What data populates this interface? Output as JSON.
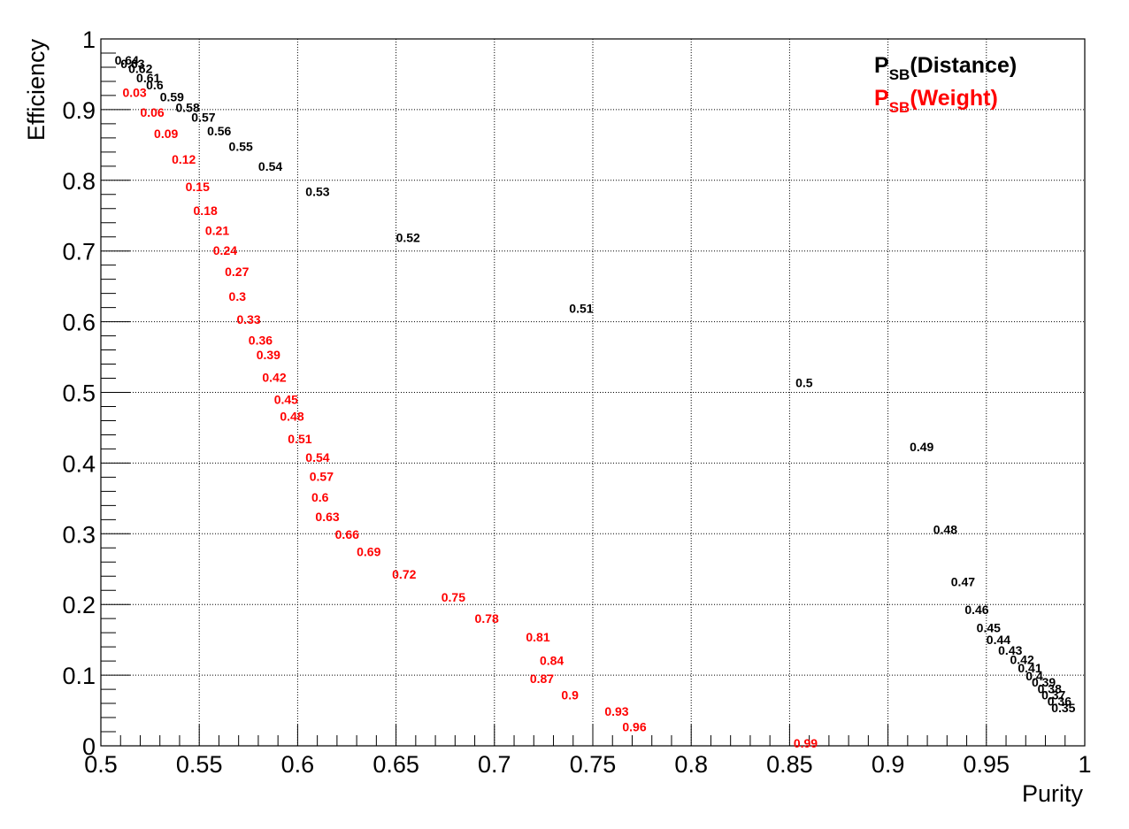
{
  "chart_data": {
    "type": "scatter",
    "title": "",
    "xlabel": "Purity",
    "ylabel": "Efficiency",
    "xlim": [
      0.5,
      1.0
    ],
    "ylim": [
      0.0,
      1.0
    ],
    "grid": true,
    "legend_position": "top-right",
    "x_ticks": [
      "0.5",
      "0.55",
      "0.6",
      "0.65",
      "0.7",
      "0.75",
      "0.8",
      "0.85",
      "0.9",
      "0.95",
      "1"
    ],
    "y_ticks": [
      "0",
      "0.1",
      "0.2",
      "0.3",
      "0.4",
      "0.5",
      "0.6",
      "0.7",
      "0.8",
      "0.9",
      "1"
    ],
    "series": [
      {
        "name": "P_SB(Distance)",
        "legend_main": "P",
        "legend_sub": "SB",
        "legend_rest": "(Distance)",
        "color": "#000000",
        "points": [
          {
            "x": 0.507,
            "y": 0.97,
            "label": "0.64"
          },
          {
            "x": 0.51,
            "y": 0.965,
            "label": "0.63"
          },
          {
            "x": 0.514,
            "y": 0.958,
            "label": "0.62"
          },
          {
            "x": 0.518,
            "y": 0.945,
            "label": "0.61"
          },
          {
            "x": 0.523,
            "y": 0.935,
            "label": "0.6"
          },
          {
            "x": 0.53,
            "y": 0.918,
            "label": "0.59"
          },
          {
            "x": 0.538,
            "y": 0.903,
            "label": "0.58"
          },
          {
            "x": 0.546,
            "y": 0.889,
            "label": "0.57"
          },
          {
            "x": 0.554,
            "y": 0.87,
            "label": "0.56"
          },
          {
            "x": 0.565,
            "y": 0.848,
            "label": "0.55"
          },
          {
            "x": 0.58,
            "y": 0.82,
            "label": "0.54"
          },
          {
            "x": 0.604,
            "y": 0.784,
            "label": "0.53"
          },
          {
            "x": 0.65,
            "y": 0.719,
            "label": "0.52"
          },
          {
            "x": 0.738,
            "y": 0.619,
            "label": "0.51"
          },
          {
            "x": 0.853,
            "y": 0.514,
            "label": "0.5"
          },
          {
            "x": 0.911,
            "y": 0.423,
            "label": "0.49"
          },
          {
            "x": 0.923,
            "y": 0.306,
            "label": "0.48"
          },
          {
            "x": 0.932,
            "y": 0.232,
            "label": "0.47"
          },
          {
            "x": 0.939,
            "y": 0.193,
            "label": "0.46"
          },
          {
            "x": 0.945,
            "y": 0.167,
            "label": "0.45"
          },
          {
            "x": 0.95,
            "y": 0.15,
            "label": "0.44"
          },
          {
            "x": 0.956,
            "y": 0.135,
            "label": "0.43"
          },
          {
            "x": 0.962,
            "y": 0.122,
            "label": "0.42"
          },
          {
            "x": 0.966,
            "y": 0.11,
            "label": "0.41"
          },
          {
            "x": 0.97,
            "y": 0.099,
            "label": "0.4"
          },
          {
            "x": 0.973,
            "y": 0.09,
            "label": "0.39"
          },
          {
            "x": 0.976,
            "y": 0.081,
            "label": "0.38"
          },
          {
            "x": 0.978,
            "y": 0.072,
            "label": "0.37"
          },
          {
            "x": 0.981,
            "y": 0.063,
            "label": "0.36"
          },
          {
            "x": 0.983,
            "y": 0.054,
            "label": "0.35"
          }
        ]
      },
      {
        "name": "P_SB(Weight)",
        "legend_main": "P",
        "legend_sub": "SB",
        "legend_rest": "(Weight)",
        "color": "#ff0000",
        "points": [
          {
            "x": 0.511,
            "y": 0.924,
            "label": "0.03"
          },
          {
            "x": 0.52,
            "y": 0.896,
            "label": "0.06"
          },
          {
            "x": 0.527,
            "y": 0.866,
            "label": "0.09"
          },
          {
            "x": 0.536,
            "y": 0.83,
            "label": "0.12"
          },
          {
            "x": 0.543,
            "y": 0.791,
            "label": "0.15"
          },
          {
            "x": 0.547,
            "y": 0.757,
            "label": "0.18"
          },
          {
            "x": 0.553,
            "y": 0.729,
            "label": "0.21"
          },
          {
            "x": 0.557,
            "y": 0.701,
            "label": "0.24"
          },
          {
            "x": 0.563,
            "y": 0.671,
            "label": "0.27"
          },
          {
            "x": 0.565,
            "y": 0.636,
            "label": "0.3"
          },
          {
            "x": 0.569,
            "y": 0.603,
            "label": "0.33"
          },
          {
            "x": 0.575,
            "y": 0.574,
            "label": "0.36"
          },
          {
            "x": 0.579,
            "y": 0.553,
            "label": "0.39"
          },
          {
            "x": 0.582,
            "y": 0.521,
            "label": "0.42"
          },
          {
            "x": 0.588,
            "y": 0.49,
            "label": "0.45"
          },
          {
            "x": 0.591,
            "y": 0.466,
            "label": "0.48"
          },
          {
            "x": 0.595,
            "y": 0.434,
            "label": "0.51"
          },
          {
            "x": 0.604,
            "y": 0.408,
            "label": "0.54"
          },
          {
            "x": 0.606,
            "y": 0.381,
            "label": "0.57"
          },
          {
            "x": 0.607,
            "y": 0.352,
            "label": "0.6"
          },
          {
            "x": 0.609,
            "y": 0.324,
            "label": "0.63"
          },
          {
            "x": 0.619,
            "y": 0.299,
            "label": "0.66"
          },
          {
            "x": 0.63,
            "y": 0.275,
            "label": "0.69"
          },
          {
            "x": 0.648,
            "y": 0.243,
            "label": "0.72"
          },
          {
            "x": 0.673,
            "y": 0.21,
            "label": "0.75"
          },
          {
            "x": 0.69,
            "y": 0.18,
            "label": "0.78"
          },
          {
            "x": 0.716,
            "y": 0.154,
            "label": "0.81"
          },
          {
            "x": 0.723,
            "y": 0.121,
            "label": "0.84"
          },
          {
            "x": 0.718,
            "y": 0.095,
            "label": "0.87"
          },
          {
            "x": 0.734,
            "y": 0.072,
            "label": "0.9"
          },
          {
            "x": 0.756,
            "y": 0.049,
            "label": "0.93"
          },
          {
            "x": 0.765,
            "y": 0.027,
            "label": "0.96"
          },
          {
            "x": 0.852,
            "y": 0.004,
            "label": "0.99"
          }
        ]
      }
    ]
  }
}
